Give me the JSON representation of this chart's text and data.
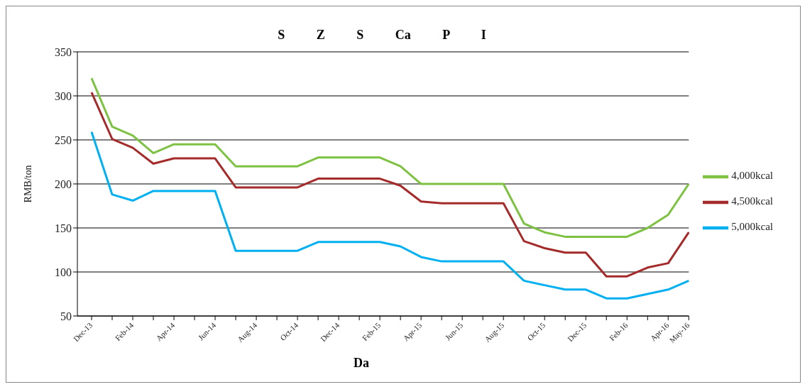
{
  "chart_data": {
    "type": "line",
    "title": "S Z S Ca P I",
    "xlabel": "Da",
    "ylabel": "RMB/ton",
    "categories": [
      "Dec-13",
      null,
      "Feb-14",
      null,
      "Apr-14",
      null,
      "Jun-14",
      null,
      "Aug-14",
      null,
      "Oct-14",
      null,
      "Dec-14",
      null,
      "Feb-15",
      null,
      "Apr-15",
      null,
      "Jun-15",
      null,
      "Aug-15",
      null,
      "Oct-15",
      null,
      "Dec-15",
      null,
      "Feb-16",
      null,
      "Apr-16",
      "May-16"
    ],
    "series": [
      {
        "name": "4,000kcal",
        "color": "#7dc242",
        "values": [
          320,
          265,
          255,
          235,
          245,
          245,
          245,
          220,
          220,
          220,
          220,
          230,
          230,
          230,
          230,
          220,
          200,
          200,
          200,
          200,
          200,
          155,
          145,
          140,
          140,
          140,
          140,
          150,
          165,
          200
        ]
      },
      {
        "name": "4,500kcal",
        "color": "#a52a2a",
        "values": [
          304,
          251,
          241,
          223,
          229,
          229,
          229,
          196,
          196,
          196,
          196,
          206,
          206,
          206,
          206,
          198,
          180,
          178,
          178,
          178,
          178,
          135,
          127,
          122,
          122,
          95,
          95,
          105,
          110,
          145
        ]
      },
      {
        "name": "5,000kcal",
        "color": "#00b0f0",
        "values": [
          259,
          188,
          181,
          192,
          192,
          192,
          192,
          124,
          124,
          124,
          124,
          134,
          134,
          134,
          134,
          129,
          117,
          112,
          112,
          112,
          112,
          90,
          85,
          80,
          80,
          70,
          70,
          75,
          80,
          90
        ]
      }
    ],
    "ylim": [
      50,
      350
    ],
    "yticks": [
      50,
      100,
      150,
      200,
      250,
      300,
      350
    ],
    "grid": "y",
    "legend": "right",
    "marker": "none",
    "line_style": "solid"
  }
}
